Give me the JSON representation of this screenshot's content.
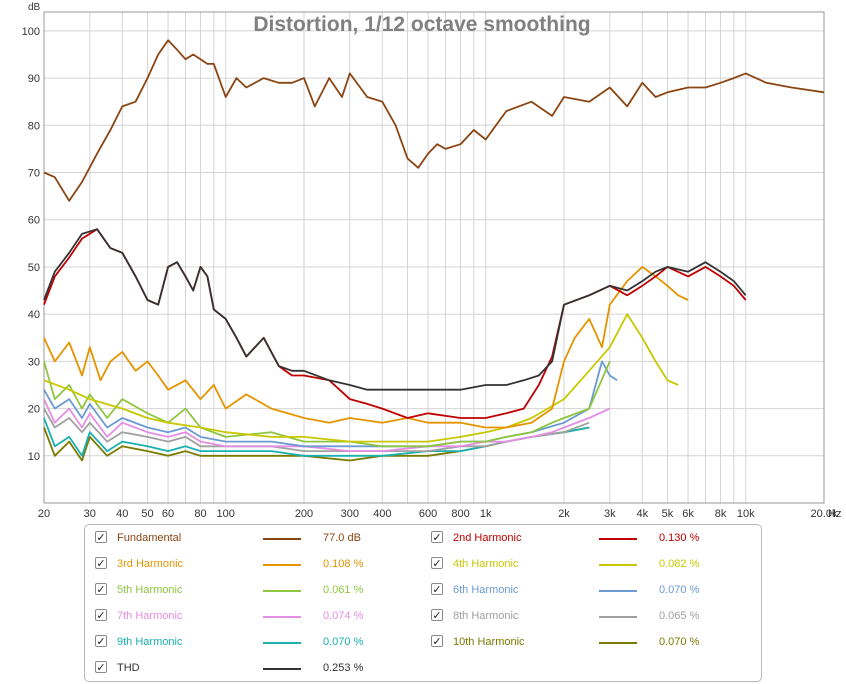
{
  "chart_data": {
    "type": "line",
    "title": "Distortion, 1/12 octave smoothing",
    "ylabel": "dB",
    "xlabel_unit": "Hz",
    "x_scale": "log",
    "xlim": [
      20,
      20000
    ],
    "ylim": [
      0,
      104
    ],
    "yticks": [
      10,
      20,
      30,
      40,
      50,
      60,
      70,
      80,
      90,
      100
    ],
    "xticks": [
      {
        "v": 20,
        "label": "20"
      },
      {
        "v": 30,
        "label": "30"
      },
      {
        "v": 40,
        "label": "40"
      },
      {
        "v": 50,
        "label": "50"
      },
      {
        "v": 60,
        "label": "60"
      },
      {
        "v": 80,
        "label": "80"
      },
      {
        "v": 100,
        "label": "100"
      },
      {
        "v": 200,
        "label": "200"
      },
      {
        "v": 300,
        "label": "300"
      },
      {
        "v": 400,
        "label": "400"
      },
      {
        "v": 600,
        "label": "600"
      },
      {
        "v": 800,
        "label": "800"
      },
      {
        "v": 1000,
        "label": "1k"
      },
      {
        "v": 2000,
        "label": "2k"
      },
      {
        "v": 3000,
        "label": "3k"
      },
      {
        "v": 4000,
        "label": "4k"
      },
      {
        "v": 5000,
        "label": "5k"
      },
      {
        "v": 6000,
        "label": "6k"
      },
      {
        "v": 8000,
        "label": "8k"
      },
      {
        "v": 10000,
        "label": "10k"
      },
      {
        "v": 20000,
        "label": "20.0k"
      }
    ],
    "grid": true,
    "series": [
      {
        "name": "Fundamental",
        "color": "#8b4513",
        "value": "77.0 dB",
        "x": [
          20,
          22,
          25,
          28,
          32,
          36,
          40,
          45,
          50,
          55,
          60,
          65,
          70,
          75,
          80,
          85,
          90,
          100,
          110,
          120,
          140,
          160,
          180,
          200,
          220,
          250,
          280,
          300,
          350,
          400,
          450,
          500,
          550,
          600,
          650,
          700,
          800,
          900,
          1000,
          1200,
          1500,
          1800,
          2000,
          2500,
          3000,
          3500,
          4000,
          4500,
          5000,
          6000,
          7000,
          8000,
          9000,
          10000,
          12000,
          15000,
          20000
        ],
        "y": [
          70,
          69,
          64,
          68,
          74,
          79,
          84,
          85,
          90,
          95,
          98,
          96,
          94,
          95,
          94,
          93,
          93,
          86,
          90,
          88,
          90,
          89,
          89,
          90,
          84,
          90,
          86,
          91,
          86,
          85,
          80,
          73,
          71,
          74,
          76,
          75,
          76,
          79,
          77,
          83,
          85,
          82,
          86,
          85,
          88,
          84,
          89,
          86,
          87,
          88,
          88,
          89,
          90,
          91,
          89,
          88,
          87
        ]
      },
      {
        "name": "2nd Harmonic",
        "color": "#c00000",
        "value": "0.130 %",
        "x": [
          20,
          22,
          25,
          28,
          32,
          36,
          40,
          45,
          50,
          55,
          60,
          65,
          70,
          75,
          80,
          85,
          90,
          100,
          110,
          120,
          140,
          160,
          180,
          200,
          250,
          300,
          350,
          400,
          500,
          600,
          800,
          1000,
          1200,
          1400,
          1600,
          1800,
          2000,
          2500,
          3000,
          3500,
          4000,
          4500,
          5000,
          6000,
          7000,
          8000,
          9000,
          10000
        ],
        "y": [
          42,
          48,
          52,
          56,
          58,
          54,
          53,
          48,
          43,
          42,
          50,
          51,
          48,
          45,
          50,
          48,
          41,
          39,
          35,
          31,
          35,
          29,
          27,
          27,
          26,
          22,
          21,
          20,
          18,
          19,
          18,
          18,
          19,
          20,
          25,
          31,
          42,
          44,
          46,
          44,
          46,
          48,
          50,
          48,
          50,
          48,
          46,
          43
        ]
      },
      {
        "name": "3rd Harmonic",
        "color": "#e59400",
        "value": "0.108 %",
        "x": [
          20,
          22,
          25,
          28,
          30,
          33,
          36,
          40,
          45,
          50,
          55,
          60,
          70,
          80,
          90,
          100,
          120,
          150,
          200,
          250,
          300,
          400,
          500,
          600,
          800,
          1000,
          1200,
          1500,
          1800,
          2000,
          2200,
          2500,
          2800,
          3000,
          3500,
          4000,
          4500,
          5000,
          5500,
          6000
        ],
        "y": [
          35,
          30,
          34,
          27,
          33,
          26,
          30,
          32,
          28,
          30,
          27,
          24,
          26,
          22,
          25,
          20,
          23,
          20,
          18,
          17,
          18,
          17,
          18,
          17,
          17,
          16,
          16,
          17,
          20,
          30,
          35,
          39,
          33,
          42,
          47,
          50,
          48,
          46,
          44,
          43
        ]
      },
      {
        "name": "4th Harmonic",
        "color": "#c8c800",
        "value": "0.082 %",
        "x": [
          20,
          25,
          30,
          40,
          50,
          60,
          80,
          100,
          150,
          200,
          300,
          400,
          600,
          800,
          1000,
          1200,
          1500,
          2000,
          2500,
          3000,
          3500,
          4000,
          4500,
          5000,
          5500
        ],
        "y": [
          26,
          24,
          22,
          20,
          18,
          17,
          16,
          15,
          14,
          14,
          13,
          13,
          13,
          14,
          15,
          16,
          18,
          22,
          28,
          33,
          40,
          35,
          30,
          26,
          25
        ]
      },
      {
        "name": "5th Harmonic",
        "color": "#8ec63f",
        "value": "0.061 %",
        "x": [
          20,
          22,
          25,
          28,
          30,
          35,
          40,
          50,
          60,
          70,
          80,
          100,
          150,
          200,
          300,
          400,
          600,
          800,
          1000,
          1200,
          1500,
          1800,
          2000,
          2500,
          3000
        ],
        "y": [
          30,
          22,
          25,
          20,
          23,
          18,
          22,
          19,
          17,
          20,
          16,
          14,
          15,
          13,
          13,
          12,
          12,
          13,
          13,
          14,
          15,
          17,
          18,
          20,
          30
        ]
      },
      {
        "name": "6th Harmonic",
        "color": "#6b9bd2",
        "value": "0.070 %",
        "x": [
          20,
          22,
          25,
          28,
          30,
          35,
          40,
          50,
          60,
          70,
          80,
          100,
          150,
          200,
          300,
          400,
          600,
          800,
          1000,
          1200,
          1500,
          2000,
          2500,
          2800,
          3000,
          3200
        ],
        "y": [
          24,
          20,
          22,
          18,
          21,
          16,
          18,
          16,
          15,
          16,
          14,
          13,
          13,
          12,
          12,
          12,
          12,
          13,
          13,
          14,
          15,
          17,
          20,
          30,
          27,
          26
        ]
      },
      {
        "name": "7th Harmonic",
        "color": "#e58ee5",
        "value": "0.074 %",
        "x": [
          20,
          22,
          25,
          28,
          30,
          35,
          40,
          50,
          60,
          70,
          80,
          100,
          150,
          200,
          300,
          400,
          600,
          800,
          1000,
          1200,
          1500,
          1800,
          2000,
          2500,
          3000
        ],
        "y": [
          22,
          17,
          20,
          16,
          19,
          14,
          17,
          15,
          14,
          15,
          13,
          12,
          12,
          12,
          11,
          11,
          12,
          12,
          13,
          13,
          14,
          15,
          16,
          18,
          20
        ]
      },
      {
        "name": "8th Harmonic",
        "color": "#a0a0a0",
        "value": "0.065 %",
        "x": [
          20,
          22,
          25,
          28,
          30,
          35,
          40,
          50,
          60,
          70,
          80,
          100,
          150,
          200,
          300,
          400,
          600,
          800,
          1000,
          1200,
          1500,
          2000,
          2500
        ],
        "y": [
          20,
          16,
          18,
          15,
          17,
          13,
          15,
          14,
          13,
          14,
          12,
          12,
          12,
          11,
          11,
          11,
          11,
          12,
          12,
          13,
          14,
          15,
          17
        ]
      },
      {
        "name": "9th Harmonic",
        "color": "#1ab0b0",
        "value": "0.070 %",
        "x": [
          20,
          22,
          25,
          28,
          30,
          35,
          40,
          50,
          60,
          70,
          80,
          100,
          150,
          200,
          300,
          400,
          600,
          800,
          1000,
          1200,
          1500,
          2000,
          2500
        ],
        "y": [
          18,
          12,
          14,
          10,
          15,
          11,
          13,
          12,
          11,
          12,
          11,
          11,
          11,
          10,
          10,
          10,
          11,
          11,
          12,
          13,
          14,
          15,
          16
        ]
      },
      {
        "name": "10th Harmonic",
        "color": "#7a7a00",
        "value": "0.070 %",
        "x": [
          20,
          22,
          25,
          28,
          30,
          35,
          40,
          50,
          60,
          70,
          80,
          100,
          150,
          200,
          300,
          400,
          600,
          800,
          1000,
          1200,
          1500,
          2000,
          2500
        ],
        "y": [
          16,
          10,
          13,
          9,
          14,
          10,
          12,
          11,
          10,
          11,
          10,
          10,
          10,
          10,
          9,
          10,
          10,
          11,
          12,
          13,
          14,
          15,
          16
        ]
      },
      {
        "name": "THD",
        "color": "#333333",
        "value": "0.253 %",
        "x": [
          20,
          22,
          25,
          28,
          32,
          36,
          40,
          45,
          50,
          55,
          60,
          65,
          70,
          75,
          80,
          85,
          90,
          100,
          110,
          120,
          140,
          160,
          180,
          200,
          250,
          300,
          350,
          400,
          500,
          600,
          800,
          1000,
          1200,
          1400,
          1600,
          1800,
          2000,
          2500,
          3000,
          3500,
          4000,
          4500,
          5000,
          6000,
          7000,
          8000,
          9000,
          10000
        ],
        "y": [
          43,
          49,
          53,
          57,
          58,
          54,
          53,
          48,
          43,
          42,
          50,
          51,
          48,
          45,
          50,
          48,
          41,
          39,
          35,
          31,
          35,
          29,
          28,
          28,
          26,
          25,
          24,
          24,
          24,
          24,
          24,
          25,
          25,
          26,
          27,
          30,
          42,
          44,
          46,
          45,
          47,
          49,
          50,
          49,
          51,
          49,
          47,
          44
        ]
      }
    ]
  }
}
